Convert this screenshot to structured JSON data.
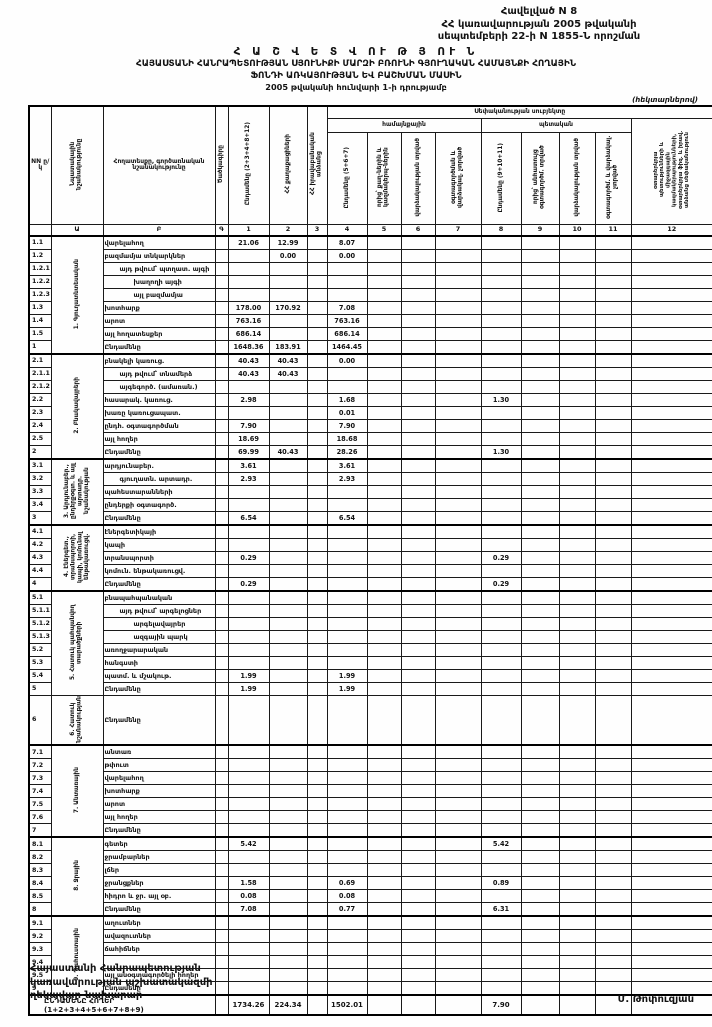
{
  "page": {
    "appendix_lines": [
      "Հավելված N 8",
      "ՀՀ կառավարության 2005 թվականի",
      "սեպտեմբերի 22-ի N 1855-Ն որոշման"
    ],
    "title_main": "Հ Ա Շ Վ Ե Տ Վ ՈՒ Թ Յ ՈՒ Ն",
    "title_line2": "ՀԱՅԱՍՏԱՆԻ ՀԱՆՐԱՊԵՏՈՒԹՅԱՆ ՍՅՈՒՆԻՔԻ ՄԱՐԶԻ ԲՌՈՒՆԻ ԳՅՈՒՂԱԿԱՆ ՀԱՄԱՅՆՔԻ ՀՈՂԱՅԻՆ",
    "title_line3": "ՖՈՆԴԻ ԱՌԿԱՅՈՒԹՅԱՆ ԵՎ ԲԱՇԽՄԱՆ ՄԱՍԻՆ",
    "title_line4": "2005 թվականի հունվարի 1-ի դրությամբ",
    "units_note": "(հեկտարներով)",
    "footer_lines": [
      "Հայաստանի Հանրապետության",
      "կառավարության աշխատակազմի",
      "ղեկավար-նախարար"
    ],
    "signer": "Մ. Թոփուզյան"
  },
  "table": {
    "header": {
      "nn": "NN ը/կ",
      "colA": "Նպատակային նշանակությունը",
      "colB": "Հողատեսքը, գործառնական նշանակությունը",
      "colC": "Ծածկագիրը",
      "c1": "Ընդամենը (2+3+4+8+12)",
      "c2": "ՀՀ քաղաքացիների",
      "c3": "ՀՀ իրավաբանական անձանց",
      "group": "Սեփականության սուբյեկտը",
      "sub_community": "համայնքային",
      "sub_state": "պետական",
      "c4": "Ընդամենը (5+6+7)",
      "c5": "որից՝ քաղ-ներին և կազմակերպ-ներին",
      "c6": "վարձակալության տրված",
      "c7": "օգտագործման և վարձակալ. չտրված",
      "c8": "Ընդամենը (9+10+11)",
      "c9": "որից՝ անհատույց օգտագործմ. տրված",
      "c10": "վարձակալության տրված",
      "c11": "օգտագործմ. և վարձակալ. չտրված",
      "c12": "օտարերկրյա պետությունների և միջազգային կազմակերպությունների, օտարերկրյա ֆիզ. և իրավ. անձանց սեփականություն",
      "col_numbers": [
        "",
        "Ա",
        "Բ",
        "Գ",
        "1",
        "2",
        "3",
        "4",
        "5",
        "6",
        "7",
        "8",
        "9",
        "10",
        "11",
        "12"
      ]
    },
    "sections": [
      {
        "label": "1. Գյուղատնտեսական",
        "rows": [
          {
            "nn": "1.1",
            "name": "վարելահող",
            "c1": "21.06",
            "c2": "12.99",
            "c4": "8.07"
          },
          {
            "nn": "1.2",
            "name": "բազմամյա տնկարկներ",
            "c2": "0.00",
            "c4": "0.00"
          },
          {
            "nn": "1.2.1",
            "name": "այդ թվում՝ պտղատ. այգի",
            "ind": 1
          },
          {
            "nn": "1.2.2",
            "name": "խաղողի այգի",
            "ind": 2
          },
          {
            "nn": "1.2.3",
            "name": "այլ բազմամյա",
            "ind": 2
          },
          {
            "nn": "1.3",
            "name": "խոտհարք",
            "c1": "178.00",
            "c2": "170.92",
            "c4": "7.08"
          },
          {
            "nn": "1.4",
            "name": "արոտ",
            "c1": "763.16",
            "c4": "763.16"
          },
          {
            "nn": "1.5",
            "name": "այլ հողատեսքեր",
            "c1": "686.14",
            "c4": "686.14"
          },
          {
            "nn": "1",
            "name": "Ընդամենը",
            "total": true,
            "c1": "1648.36",
            "c2": "183.91",
            "c4": "1464.45"
          }
        ]
      },
      {
        "label": "2. Բնակավայրերի",
        "rows": [
          {
            "nn": "2.1",
            "name": "բնակելի կառուց.",
            "c1": "40.43",
            "c2": "40.43",
            "c4": "0.00"
          },
          {
            "nn": "2.1.1",
            "name": "այդ թվում՝ տնամերձ",
            "ind": 1,
            "c1": "40.43",
            "c2": "40.43"
          },
          {
            "nn": "2.1.2",
            "name": "այգեգործ. (ամառան.)",
            "ind": 1
          },
          {
            "nn": "2.2",
            "name": "հասարակ. կառուց.",
            "c1": "2.98",
            "c4": "1.68",
            "c8": "1.30"
          },
          {
            "nn": "2.3",
            "name": "խառը կառուցապատ.",
            "c4": "0.01"
          },
          {
            "nn": "2.4",
            "name": "ընդհ. օգտագործման",
            "c1": "7.90",
            "c4": "7.90"
          },
          {
            "nn": "2.5",
            "name": "այլ հողեր",
            "c1": "18.69",
            "c4": "18.68"
          },
          {
            "nn": "2",
            "name": "Ընդամենը",
            "total": true,
            "c1": "69.99",
            "c2": "40.43",
            "c4": "28.26",
            "c8": "1.30"
          }
        ]
      },
      {
        "label": "3. Արդյունաբեր., ընդերքօգտ. և այլ արտադր. նշանակության",
        "rows": [
          {
            "nn": "3.1",
            "name": "արդյունաբեր.",
            "c1": "3.61",
            "c4": "3.61"
          },
          {
            "nn": "3.2",
            "name": "գյուղատն. արտադր.",
            "ind": 1,
            "c1": "2.93",
            "c4": "2.93"
          },
          {
            "nn": "3.3",
            "name": "պահեստարանների"
          },
          {
            "nn": "3.4",
            "name": "ընդերքի օգտագործ."
          },
          {
            "nn": "3",
            "name": "Ընդամենը",
            "total": true,
            "c1": "6.54",
            "c4": "6.54"
          }
        ]
      },
      {
        "label": "4. Էներգետ., տրանսպորտի, կապի, կոմունալ ենթակառուցվ.",
        "rows": [
          {
            "nn": "4.1",
            "name": "էներգետիկայի"
          },
          {
            "nn": "4.2",
            "name": "կապի"
          },
          {
            "nn": "4.3",
            "name": "տրանսպորտի",
            "c1": "0.29",
            "c8": "0.29"
          },
          {
            "nn": "4.4",
            "name": "կոմուն. ենթակառուցվ."
          },
          {
            "nn": "4",
            "name": "Ընդամենը",
            "total": true,
            "c1": "0.29",
            "c8": "0.29"
          }
        ]
      },
      {
        "label": "5. Հատուկ պահպանվող տարածքների",
        "rows": [
          {
            "nn": "5.1",
            "name": "բնապահպանական"
          },
          {
            "nn": "5.1.1",
            "name": "այդ թվում՝ արգելոցներ",
            "ind": 1
          },
          {
            "nn": "5.1.2",
            "name": "արգելավայրեր",
            "ind": 2
          },
          {
            "nn": "5.1.3",
            "name": "ազգային պարկ",
            "ind": 2
          },
          {
            "nn": "5.2",
            "name": "առողջարարական"
          },
          {
            "nn": "5.3",
            "name": "հանգստի"
          },
          {
            "nn": "5.4",
            "name": "պատմ. և մշակութ.",
            "c1": "1.99",
            "c4": "1.99"
          },
          {
            "nn": "5",
            "name": "Ընդամենը",
            "total": true,
            "c1": "1.99",
            "c4": "1.99"
          }
        ]
      },
      {
        "label": "6. Հատուկ նշանակության",
        "tall": true,
        "rows": [
          {
            "nn": "6",
            "name": "Ընդամենը",
            "total": true
          }
        ]
      },
      {
        "label": "7. Անտառային",
        "rows": [
          {
            "nn": "7.1",
            "name": "անտառ"
          },
          {
            "nn": "7.2",
            "name": "թփուտ"
          },
          {
            "nn": "7.3",
            "name": "վարելահող"
          },
          {
            "nn": "7.4",
            "name": "խոտհարք"
          },
          {
            "nn": "7.5",
            "name": "արոտ"
          },
          {
            "nn": "7.6",
            "name": "այլ հողեր"
          },
          {
            "nn": "7",
            "name": "Ընդամենը",
            "total": true
          }
        ]
      },
      {
        "label": "8. Ջրային",
        "rows": [
          {
            "nn": "8.1",
            "name": "գետեր",
            "c1": "5.42",
            "c8": "5.42"
          },
          {
            "nn": "8.2",
            "name": "ջրամբարներ"
          },
          {
            "nn": "8.3",
            "name": "լճեր"
          },
          {
            "nn": "8.4",
            "name": "ջրանցքներ",
            "c1": "1.58",
            "c4": "0.69",
            "c8": "0.89"
          },
          {
            "nn": "8.5",
            "name": "հիդրո և ջր. այլ օբ.",
            "c1": "0.08",
            "c4": "0.08"
          },
          {
            "nn": "8",
            "name": "Ընդամենը",
            "total": true,
            "c1": "7.08",
            "c4": "0.77",
            "c8": "6.31"
          }
        ]
      },
      {
        "label": "9. Պահուստային",
        "rows": [
          {
            "nn": "9.1",
            "name": "աղուտներ"
          },
          {
            "nn": "9.2",
            "name": "ավազուտներ"
          },
          {
            "nn": "9.3",
            "name": "ճահիճներ"
          },
          {
            "nn": "9.4",
            "name": ""
          },
          {
            "nn": "9.5",
            "name": "այլ անօգտագործելի հողեր"
          },
          {
            "nn": "9",
            "name": "Ընդամենը",
            "total": true
          }
        ]
      }
    ],
    "grand_total": {
      "label": "ԸՆԴԱՄԵՆԸ ՀՈՂԵՐ (1+2+3+4+5+6+7+8+9)",
      "c1": "1734.26",
      "c2": "224.34",
      "c4": "1502.01",
      "c8": "7.90"
    }
  }
}
